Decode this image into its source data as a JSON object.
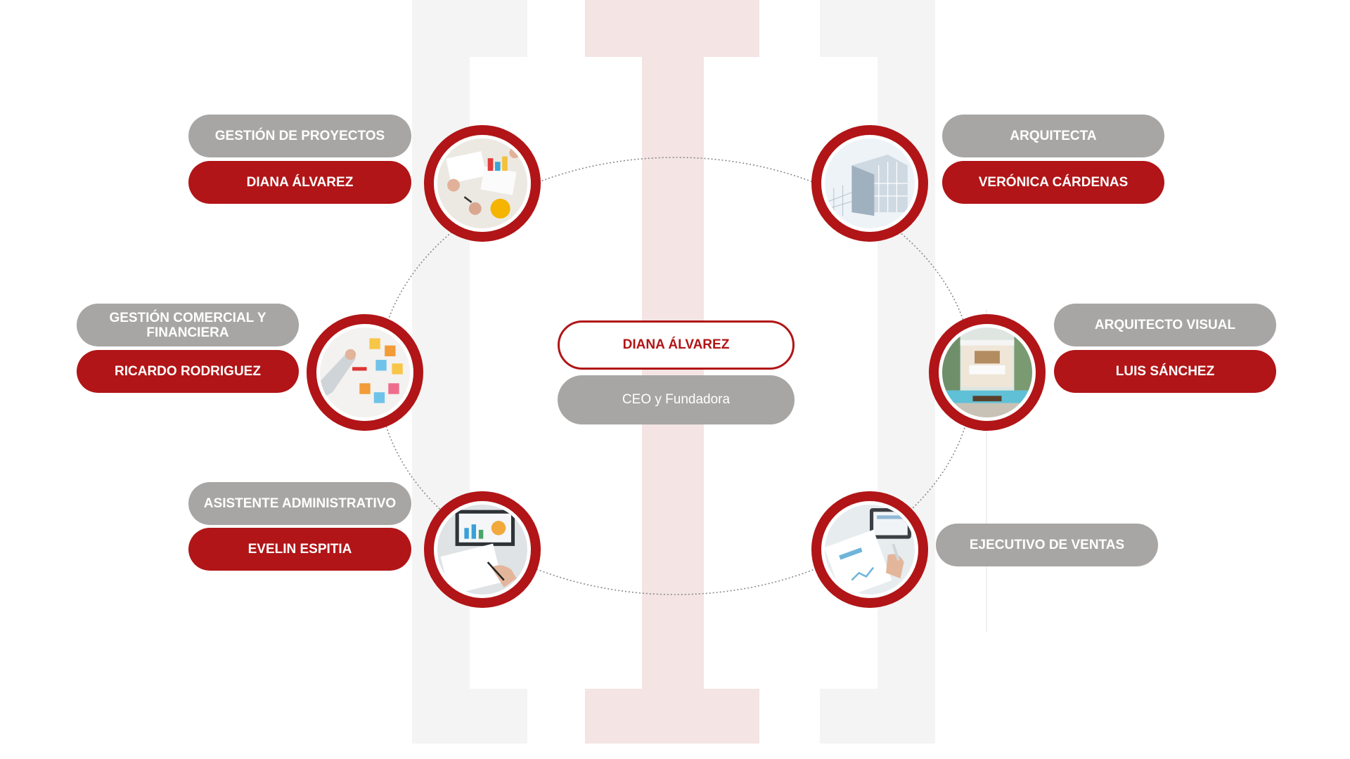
{
  "ceo": {
    "name": "DIANA ÁLVAREZ",
    "role": "CEO y Fundadora"
  },
  "members": [
    {
      "area": "GESTIÓN DE PROYECTOS",
      "name": "DIANA ÁLVAREZ",
      "photo_icon": "planning-table-photo-icon"
    },
    {
      "area": "ARQUITECTA",
      "name": "VERÓNICA CÁRDENAS",
      "photo_icon": "building-photo-icon"
    },
    {
      "area": "GESTIÓN COMERCIAL Y FINANCIERA",
      "name": "RICARDO RODRIGUEZ",
      "photo_icon": "sticky-notes-photo-icon"
    },
    {
      "area": "ARQUITECTO VISUAL",
      "name": "LUIS SÁNCHEZ",
      "photo_icon": "interior-render-photo-icon"
    },
    {
      "area": "ASISTENTE ADMINISTRATIVO",
      "name": "EVELIN ESPITIA",
      "photo_icon": "reports-desk-photo-icon"
    },
    {
      "area": "EJECUTIVO DE VENTAS",
      "photo_icon": "sales-report-photo-icon"
    }
  ],
  "colors": {
    "accent": "#b11517",
    "pill_gray": "#a7a6a5",
    "watermark_red": "#f4e4e4",
    "watermark_gray": "#f4f4f4",
    "connector": "#8a8a8a"
  }
}
